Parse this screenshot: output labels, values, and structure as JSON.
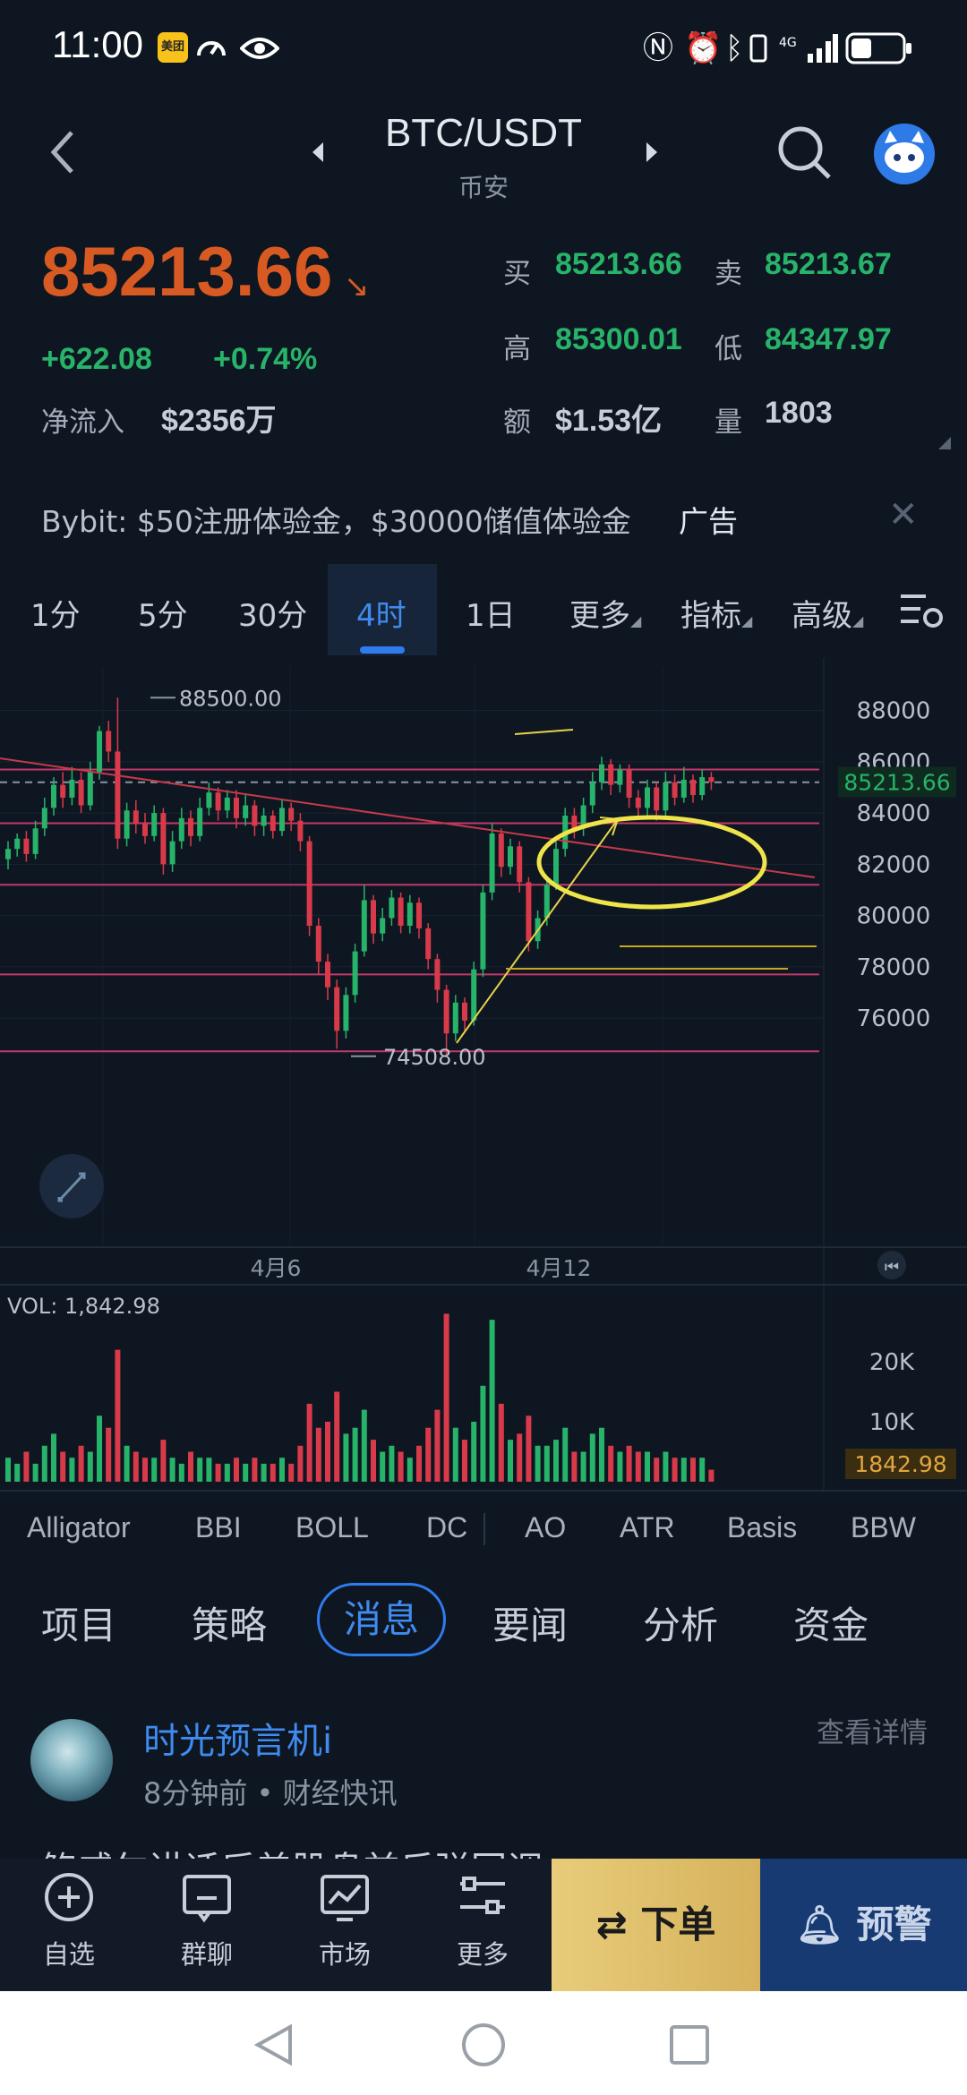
{
  "status_bar": {
    "time": "11:00",
    "meituan_label": "美团"
  },
  "header": {
    "title": "BTC/USDT",
    "subtitle": "币安"
  },
  "price": {
    "last": "85213.66",
    "change": "+622.08",
    "change_pct": "+0.74%",
    "net_inflow_label": "净流入",
    "net_inflow": "$2356万",
    "buy_label": "买",
    "buy": "85213.66",
    "sell_label": "卖",
    "sell": "85213.67",
    "high_label": "高",
    "high": "85300.01",
    "low_label": "低",
    "low": "84347.97",
    "amount_label": "额",
    "amount": "$1.53亿",
    "volume_label": "量",
    "volume": "1803"
  },
  "ad": {
    "text": "Bybit: $50注册体验金，$30000储值体验金",
    "tag": "广告"
  },
  "timeframes": [
    "1分",
    "5分",
    "30分",
    "4时",
    "1日",
    "更多",
    "指标",
    "高级"
  ],
  "colors": {
    "up": "#27b36a",
    "down": "#d83a4a",
    "accent": "#2f7cf0",
    "price_orange": "#d85a23"
  },
  "chart_data": {
    "type": "candlestick",
    "y_ticks": [
      "88000",
      "86000",
      "84000",
      "82000",
      "80000",
      "78000",
      "76000"
    ],
    "ylim": [
      74500,
      89000
    ],
    "x_ticks": [
      "4月6",
      "4月12"
    ],
    "current_price_label": "85213.66",
    "high_annotation": "88500.00",
    "low_annotation": "74508.00",
    "horizontal_levels": [
      85700,
      85200,
      83600,
      81200,
      77700,
      74700
    ],
    "volume_label": "VOL: 1,842.98",
    "volume_ticks": [
      "20K",
      "10K"
    ],
    "volume_current": "1842.98",
    "candles": [
      [
        82200,
        82600,
        81800,
        82900,
        0
      ],
      [
        82600,
        83000,
        82300,
        83200,
        0
      ],
      [
        83000,
        82400,
        82100,
        83300,
        1
      ],
      [
        82400,
        83400,
        82200,
        83700,
        0
      ],
      [
        83400,
        84200,
        83100,
        84600,
        0
      ],
      [
        84200,
        85100,
        83900,
        85400,
        0
      ],
      [
        85100,
        84600,
        84200,
        85600,
        1
      ],
      [
        84600,
        85300,
        84300,
        85800,
        0
      ],
      [
        85300,
        84300,
        84000,
        85600,
        1
      ],
      [
        84300,
        85600,
        84100,
        86000,
        0
      ],
      [
        85600,
        87200,
        85300,
        87400,
        0
      ],
      [
        87200,
        86400,
        86000,
        87600,
        1
      ],
      [
        86400,
        83000,
        82600,
        88500,
        1
      ],
      [
        83000,
        84100,
        82700,
        84400,
        0
      ],
      [
        84100,
        83600,
        83200,
        84500,
        1
      ],
      [
        83600,
        83100,
        82800,
        84000,
        1
      ],
      [
        83100,
        84000,
        82900,
        84300,
        0
      ],
      [
        84000,
        82000,
        81600,
        84200,
        1
      ],
      [
        82000,
        82900,
        81700,
        83300,
        0
      ],
      [
        82900,
        83800,
        82600,
        84200,
        0
      ],
      [
        83800,
        83100,
        82700,
        84100,
        1
      ],
      [
        83100,
        84200,
        82900,
        84600,
        0
      ],
      [
        84200,
        84800,
        83900,
        85200,
        0
      ],
      [
        84800,
        84100,
        83700,
        85000,
        1
      ],
      [
        84100,
        84600,
        83800,
        84900,
        0
      ],
      [
        84600,
        83800,
        83400,
        84900,
        1
      ],
      [
        83800,
        84300,
        83500,
        84700,
        0
      ],
      [
        84300,
        83500,
        83100,
        84500,
        1
      ],
      [
        83500,
        83900,
        83100,
        84200,
        0
      ],
      [
        83900,
        83300,
        83000,
        84100,
        1
      ],
      [
        83300,
        84200,
        83100,
        84500,
        0
      ],
      [
        84200,
        83700,
        83300,
        84400,
        1
      ],
      [
        83700,
        82900,
        82500,
        84000,
        1
      ],
      [
        82900,
        79600,
        79200,
        83100,
        1
      ],
      [
        79600,
        78200,
        77700,
        79900,
        1
      ],
      [
        78200,
        77200,
        76700,
        78500,
        1
      ],
      [
        77200,
        75500,
        74800,
        77500,
        1
      ],
      [
        75500,
        76900,
        75200,
        77200,
        0
      ],
      [
        76900,
        78600,
        76600,
        78900,
        0
      ],
      [
        78600,
        80600,
        78400,
        81200,
        0
      ],
      [
        80600,
        79300,
        78900,
        80800,
        1
      ],
      [
        79300,
        79900,
        79000,
        80300,
        0
      ],
      [
        79900,
        80700,
        79600,
        81000,
        0
      ],
      [
        80700,
        79600,
        79300,
        80900,
        1
      ],
      [
        79600,
        80500,
        79300,
        80800,
        0
      ],
      [
        80500,
        79500,
        79100,
        80700,
        1
      ],
      [
        79500,
        78300,
        77900,
        79700,
        1
      ],
      [
        78300,
        77100,
        76600,
        78500,
        1
      ],
      [
        77100,
        75400,
        74508,
        77300,
        1
      ],
      [
        75400,
        76600,
        75100,
        76900,
        0
      ],
      [
        76600,
        75900,
        75500,
        76800,
        1
      ],
      [
        75900,
        77900,
        75700,
        78200,
        0
      ],
      [
        77900,
        80900,
        77600,
        81200,
        0
      ],
      [
        80900,
        83200,
        80600,
        83600,
        0
      ],
      [
        83200,
        81900,
        81500,
        83400,
        1
      ],
      [
        81900,
        82700,
        81600,
        83000,
        0
      ],
      [
        82700,
        81300,
        80900,
        82900,
        1
      ],
      [
        81300,
        79000,
        78600,
        81500,
        1
      ],
      [
        79000,
        79900,
        78700,
        80200,
        0
      ],
      [
        79900,
        81200,
        79600,
        81500,
        0
      ],
      [
        81200,
        82600,
        81000,
        82900,
        0
      ],
      [
        82600,
        83900,
        82300,
        84200,
        0
      ],
      [
        83900,
        83400,
        83000,
        84200,
        1
      ],
      [
        83400,
        84300,
        83100,
        84600,
        0
      ],
      [
        84300,
        85200,
        84000,
        85600,
        0
      ],
      [
        85200,
        85900,
        84900,
        86200,
        0
      ],
      [
        85900,
        85100,
        84700,
        86100,
        1
      ],
      [
        85100,
        85700,
        84800,
        85900,
        0
      ],
      [
        85700,
        84600,
        84200,
        85900,
        1
      ],
      [
        84600,
        84200,
        83800,
        84900,
        1
      ],
      [
        84200,
        85000,
        83900,
        85300,
        0
      ],
      [
        85000,
        84100,
        83700,
        85200,
        1
      ],
      [
        84100,
        85200,
        83900,
        85600,
        0
      ],
      [
        85200,
        84600,
        84300,
        85500,
        1
      ],
      [
        84600,
        85300,
        84400,
        85800,
        0
      ],
      [
        85300,
        84700,
        84400,
        85500,
        1
      ],
      [
        84700,
        85400,
        84500,
        85700,
        0
      ],
      [
        85400,
        85213,
        84900,
        85600,
        1
      ]
    ],
    "volumes": [
      [
        4,
        0
      ],
      [
        3,
        0
      ],
      [
        5,
        1
      ],
      [
        3,
        0
      ],
      [
        6,
        0
      ],
      [
        8,
        0
      ],
      [
        5,
        1
      ],
      [
        4,
        0
      ],
      [
        6,
        1
      ],
      [
        5,
        0
      ],
      [
        11,
        0
      ],
      [
        9,
        1
      ],
      [
        22,
        1
      ],
      [
        6,
        0
      ],
      [
        5,
        1
      ],
      [
        4,
        1
      ],
      [
        4,
        0
      ],
      [
        7,
        1
      ],
      [
        4,
        0
      ],
      [
        3,
        0
      ],
      [
        5,
        1
      ],
      [
        4,
        0
      ],
      [
        4,
        0
      ],
      [
        3,
        1
      ],
      [
        3,
        0
      ],
      [
        4,
        1
      ],
      [
        3,
        0
      ],
      [
        4,
        1
      ],
      [
        3,
        0
      ],
      [
        3,
        1
      ],
      [
        4,
        0
      ],
      [
        3,
        1
      ],
      [
        6,
        1
      ],
      [
        13,
        1
      ],
      [
        9,
        1
      ],
      [
        10,
        1
      ],
      [
        15,
        1
      ],
      [
        8,
        0
      ],
      [
        9,
        0
      ],
      [
        12,
        0
      ],
      [
        7,
        1
      ],
      [
        5,
        0
      ],
      [
        6,
        0
      ],
      [
        5,
        1
      ],
      [
        4,
        0
      ],
      [
        6,
        1
      ],
      [
        9,
        1
      ],
      [
        12,
        1
      ],
      [
        28,
        1
      ],
      [
        9,
        0
      ],
      [
        7,
        1
      ],
      [
        10,
        0
      ],
      [
        16,
        0
      ],
      [
        27,
        0
      ],
      [
        13,
        1
      ],
      [
        7,
        0
      ],
      [
        8,
        1
      ],
      [
        11,
        1
      ],
      [
        6,
        0
      ],
      [
        6,
        0
      ],
      [
        7,
        0
      ],
      [
        9,
        0
      ],
      [
        5,
        1
      ],
      [
        5,
        0
      ],
      [
        8,
        0
      ],
      [
        9,
        0
      ],
      [
        6,
        1
      ],
      [
        5,
        0
      ],
      [
        6,
        1
      ],
      [
        5,
        1
      ],
      [
        5,
        0
      ],
      [
        4,
        1
      ],
      [
        5,
        0
      ],
      [
        4,
        1
      ],
      [
        4,
        0
      ],
      [
        4,
        1
      ],
      [
        4,
        0
      ],
      [
        2,
        1
      ]
    ]
  },
  "indicators": [
    "Alligator",
    "BBI",
    "BOLL",
    "DC",
    "AO",
    "ATR",
    "Basis",
    "BBW"
  ],
  "categories": [
    "项目",
    "策略",
    "消息",
    "要闻",
    "分析",
    "资金"
  ],
  "news": {
    "author": "时光预言机i",
    "time": "8分钟前",
    "source": "财经快讯",
    "detail": "查看详情",
    "body": "鲍威尔讲话后美股盘前反弹回调"
  },
  "bottom_nav": {
    "favorite": "自选",
    "group_chat": "群聊",
    "market": "市场",
    "more": "更多",
    "order": "下单",
    "alert": "预警"
  }
}
